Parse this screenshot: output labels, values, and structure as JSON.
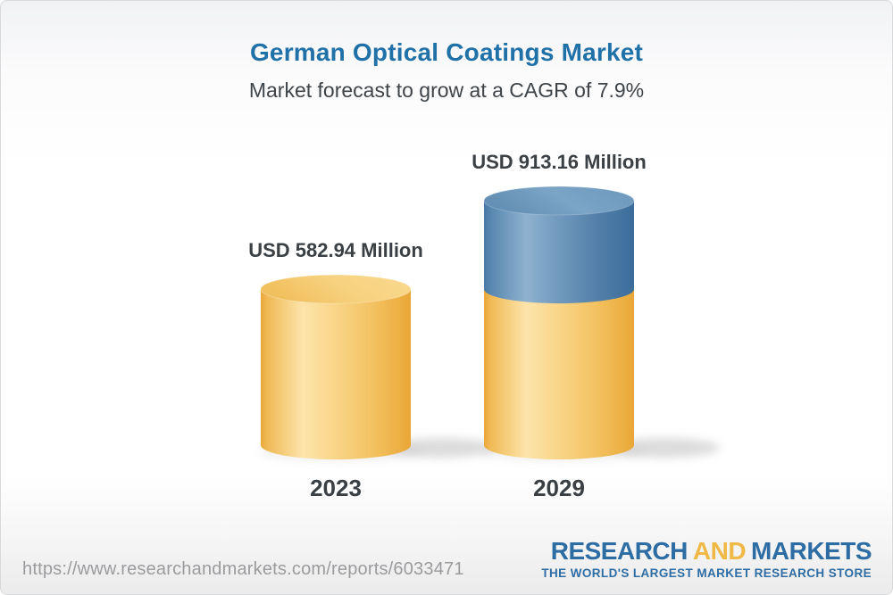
{
  "chart_data": {
    "type": "bar",
    "subtype": "3d-cylinder",
    "title": "German Optical Coatings Market",
    "subtitle": "Market forecast to grow at a CAGR of 7.9%",
    "cagr_percent": 7.9,
    "unit": "USD Million",
    "categories": [
      "2023",
      "2029"
    ],
    "values": [
      582.94,
      913.16
    ],
    "value_labels": [
      "USD 582.94 Million",
      "USD 913.16 Million"
    ],
    "legend": "none",
    "grid": false,
    "notes": "2029 bar is yellow up to the 2023 value (582.94) with the growth portion above shown in blue",
    "colors": {
      "base_segment_yellow": "#f6cf7c",
      "growth_segment_blue": "#6494bc"
    }
  },
  "footer": {
    "url": "https://www.researchandmarkets.com/reports/6033471",
    "logo": {
      "word1": "RESEARCH",
      "word2": "AND",
      "word3": "MARKETS",
      "tagline": "THE WORLD'S LARGEST MARKET RESEARCH STORE"
    }
  },
  "colors": {
    "title_blue": "#2171a9",
    "text_dark_gray": "#3b4045",
    "url_gray": "#9b9b9d",
    "logo_blue": "#2e6da4",
    "logo_yellow": "#f0b844"
  }
}
